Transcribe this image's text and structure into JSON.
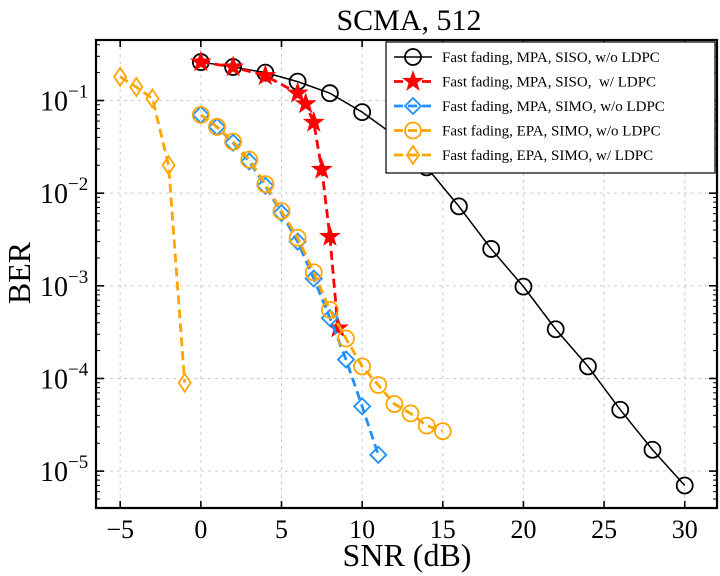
{
  "chart_data": {
    "type": "line",
    "title": "SCMA, 512",
    "xlabel": "SNR (dB)",
    "ylabel": "BER",
    "xlim": [
      -6.5,
      32
    ],
    "ylim": [
      4e-06,
      0.45
    ],
    "yscale": "log",
    "grid": true,
    "legend_position": "top-right",
    "x_ticks": [
      {
        "value": -5,
        "label": "−5"
      },
      {
        "value": 0,
        "label": "0"
      },
      {
        "value": 5,
        "label": "5"
      },
      {
        "value": 10,
        "label": "10"
      },
      {
        "value": 15,
        "label": "15"
      },
      {
        "value": 20,
        "label": "20"
      },
      {
        "value": 25,
        "label": "25"
      },
      {
        "value": 30,
        "label": "30"
      }
    ],
    "y_ticks": [
      {
        "value": 1e-05,
        "base": "10",
        "exp": "−5"
      },
      {
        "value": 0.0001,
        "base": "10",
        "exp": "−4"
      },
      {
        "value": 0.001,
        "base": "10",
        "exp": "−3"
      },
      {
        "value": 0.01,
        "base": "10",
        "exp": "−2"
      },
      {
        "value": 0.1,
        "base": "10",
        "exp": "−1"
      }
    ],
    "series": [
      {
        "name": "Fast fading, MPA, SISO, w/o LDPC",
        "color": "#000000",
        "dashed": false,
        "marker": "circle",
        "x": [
          0,
          2,
          4,
          6,
          8,
          10,
          12,
          14,
          16,
          18,
          20,
          22,
          24,
          26,
          28,
          30
        ],
        "y": [
          0.26,
          0.23,
          0.2,
          0.16,
          0.12,
          0.075,
          0.042,
          0.019,
          0.0072,
          0.0025,
          0.00098,
          0.00034,
          0.000135,
          4.6e-05,
          1.7e-05,
          7e-06
        ]
      },
      {
        "name": "Fast fading, MPA, SISO,  w/ LDPC",
        "color": "#ff0000",
        "dashed": true,
        "marker": "star",
        "x": [
          0,
          2,
          4,
          6,
          6.5,
          7,
          7.5,
          8,
          8.5
        ],
        "y": [
          0.26,
          0.23,
          0.185,
          0.12,
          0.092,
          0.058,
          0.018,
          0.0034,
          0.00035
        ]
      },
      {
        "name": "Fast fading, MPA, SIMO, w/o LDPC",
        "color": "#1e90ff",
        "dashed": true,
        "marker": "diamond",
        "x": [
          0,
          1,
          2,
          3,
          4,
          5,
          6,
          7,
          8,
          9,
          10,
          11
        ],
        "y": [
          0.07,
          0.052,
          0.035,
          0.022,
          0.012,
          0.0061,
          0.003,
          0.0012,
          0.00045,
          0.00016,
          5e-05,
          1.5e-05
        ]
      },
      {
        "name": "Fast fading, EPA, SIMO, w/o LDPC",
        "color": "#ffa500",
        "dashed": true,
        "marker": "circle",
        "x": [
          0,
          1,
          2,
          3,
          4,
          5,
          6,
          7,
          8,
          9,
          10,
          11,
          12,
          13,
          14,
          15
        ],
        "y": [
          0.07,
          0.052,
          0.036,
          0.023,
          0.0125,
          0.0064,
          0.0033,
          0.0014,
          0.00055,
          0.00027,
          0.000135,
          8.5e-05,
          5.3e-05,
          4.2e-05,
          3.1e-05,
          2.7e-05
        ]
      },
      {
        "name": "Fast fading, EPA, SIMO, w/ LDPC",
        "color": "#ffa500",
        "dashed": true,
        "marker": "thin-diamond",
        "x": [
          -5,
          -4,
          -3,
          -2,
          -1
        ],
        "y": [
          0.18,
          0.14,
          0.105,
          0.02,
          9e-05
        ]
      }
    ]
  }
}
